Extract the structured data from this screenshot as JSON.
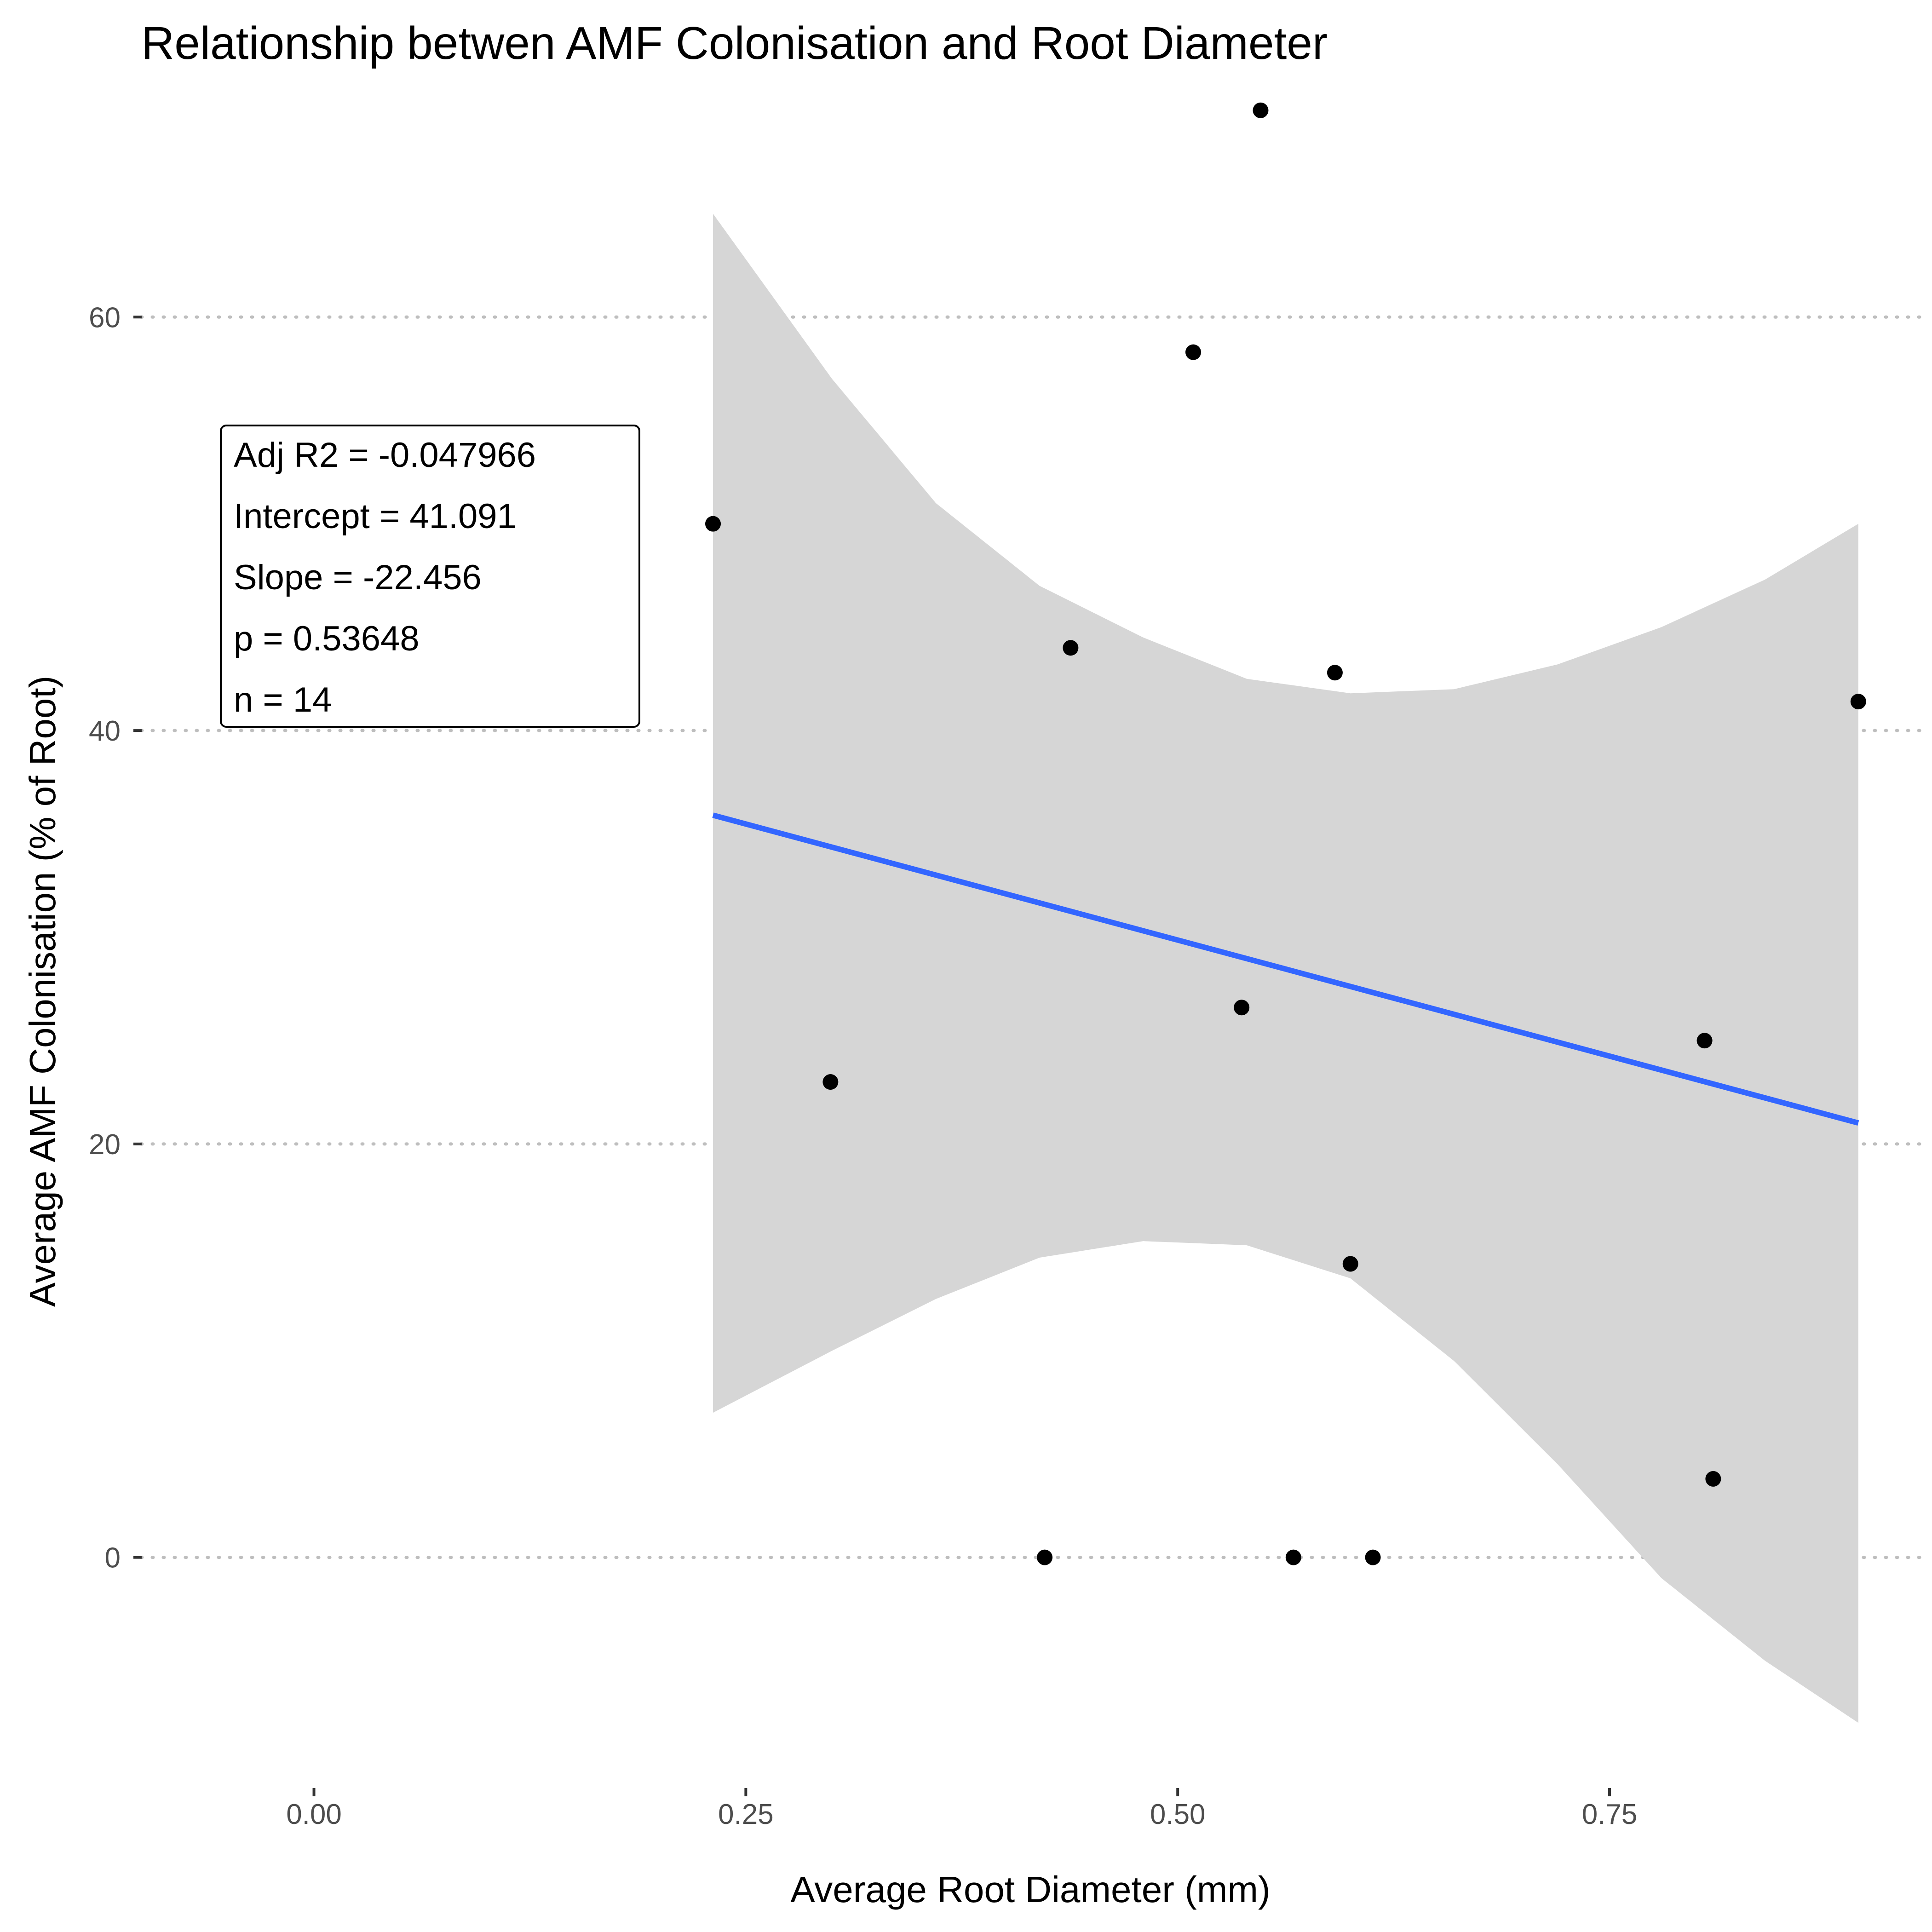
{
  "chart_data": {
    "type": "scatter",
    "title": "Relationship betwen AMF Colonisation and Root Diameter",
    "xlabel": "Average Root Diameter (mm)",
    "ylabel": "Average AMF Colonisation (% of Root)",
    "xlim": [
      -0.1,
      0.93
    ],
    "ylim": [
      -11,
      72
    ],
    "xticks": [
      {
        "value": 0.0,
        "label": "0.00"
      },
      {
        "value": 0.25,
        "label": "0.25"
      },
      {
        "value": 0.5,
        "label": "0.50"
      },
      {
        "value": 0.75,
        "label": "0.75"
      }
    ],
    "yticks": [
      {
        "value": 0,
        "label": "0"
      },
      {
        "value": 20,
        "label": "20"
      },
      {
        "value": 40,
        "label": "40"
      },
      {
        "value": 60,
        "label": "60"
      }
    ],
    "grid": "horizontal dotted at y ticks",
    "points": [
      {
        "x": 0.231,
        "y": 50.0
      },
      {
        "x": 0.299,
        "y": 23.0
      },
      {
        "x": 0.423,
        "y": 0.0
      },
      {
        "x": 0.438,
        "y": 44.0
      },
      {
        "x": 0.509,
        "y": 58.3
      },
      {
        "x": 0.537,
        "y": 26.6
      },
      {
        "x": 0.548,
        "y": 70.0
      },
      {
        "x": 0.567,
        "y": 0.0
      },
      {
        "x": 0.591,
        "y": 42.8
      },
      {
        "x": 0.6,
        "y": 14.2
      },
      {
        "x": 0.613,
        "y": 0.0
      },
      {
        "x": 0.805,
        "y": 25.0
      },
      {
        "x": 0.81,
        "y": 3.8
      },
      {
        "x": 0.894,
        "y": 41.4
      }
    ],
    "regression": {
      "intercept": 41.091,
      "slope": -22.456,
      "x_range": [
        0.231,
        0.894
      ],
      "ci_upper": [
        {
          "x": 0.231,
          "y": 65.0
        },
        {
          "x": 0.3,
          "y": 57.0
        },
        {
          "x": 0.36,
          "y": 51.0
        },
        {
          "x": 0.42,
          "y": 47.0
        },
        {
          "x": 0.48,
          "y": 44.5
        },
        {
          "x": 0.54,
          "y": 42.5
        },
        {
          "x": 0.6,
          "y": 41.8
        },
        {
          "x": 0.66,
          "y": 42.0
        },
        {
          "x": 0.72,
          "y": 43.2
        },
        {
          "x": 0.78,
          "y": 45.0
        },
        {
          "x": 0.84,
          "y": 47.3
        },
        {
          "x": 0.894,
          "y": 50.0
        }
      ],
      "ci_lower": [
        {
          "x": 0.231,
          "y": 7.0
        },
        {
          "x": 0.3,
          "y": 10.0
        },
        {
          "x": 0.36,
          "y": 12.5
        },
        {
          "x": 0.42,
          "y": 14.5
        },
        {
          "x": 0.48,
          "y": 15.3
        },
        {
          "x": 0.54,
          "y": 15.1
        },
        {
          "x": 0.6,
          "y": 13.5
        },
        {
          "x": 0.66,
          "y": 9.5
        },
        {
          "x": 0.72,
          "y": 4.5
        },
        {
          "x": 0.78,
          "y": -1.0
        },
        {
          "x": 0.84,
          "y": -5.0
        },
        {
          "x": 0.894,
          "y": -8.0
        }
      ]
    },
    "annotations": [
      "Adj R2 =  -0.047966",
      "Intercept = 41.091",
      "Slope = -22.456",
      "p = 0.53648",
      "n = 14"
    ],
    "colors": {
      "points": "#000000",
      "line": "#3366ff",
      "ribbon": "#d6d6d6",
      "grid": "#bebebe"
    }
  }
}
